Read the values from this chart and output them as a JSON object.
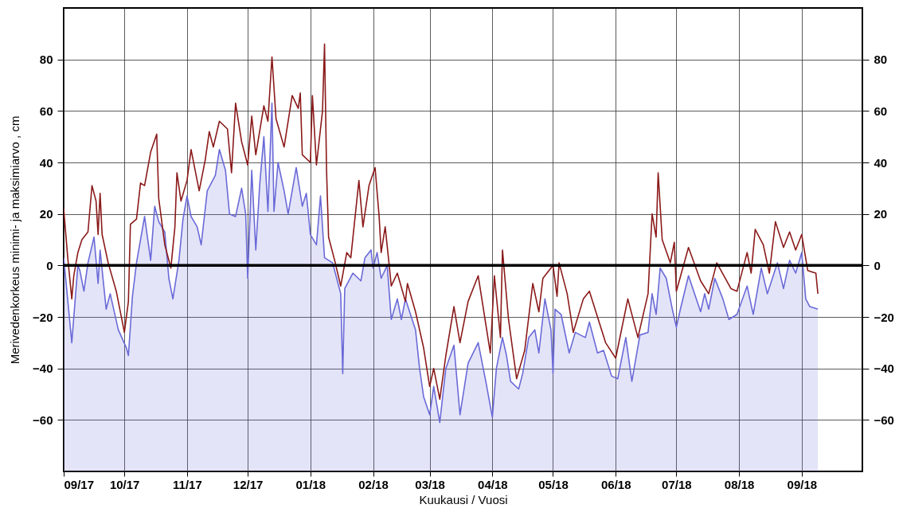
{
  "chart_data": {
    "type": "line",
    "xlabel": "Kuukausi / Vuosi",
    "ylabel": "Merivedenkorkeus minimi- ja maksimiarvo , cm",
    "xlim": [
      "2017-09-01",
      "2018-10-01"
    ],
    "xticks": [
      {
        "value": "2017-09-01",
        "label": "09/17"
      },
      {
        "value": "2017-10-01",
        "label": "10/17"
      },
      {
        "value": "2017-11-01",
        "label": "11/17"
      },
      {
        "value": "2017-12-01",
        "label": "12/17"
      },
      {
        "value": "2018-01-01",
        "label": "01/18"
      },
      {
        "value": "2018-02-01",
        "label": "02/18"
      },
      {
        "value": "2018-03-01",
        "label": "03/18"
      },
      {
        "value": "2018-04-01",
        "label": "04/18"
      },
      {
        "value": "2018-05-01",
        "label": "05/18"
      },
      {
        "value": "2018-06-01",
        "label": "06/18"
      },
      {
        "value": "2018-07-01",
        "label": "07/18"
      },
      {
        "value": "2018-08-01",
        "label": "08/18"
      },
      {
        "value": "2018-09-01",
        "label": "09/18"
      }
    ],
    "ylim": [
      -80,
      100
    ],
    "yticks": [
      -60,
      -40,
      -20,
      0,
      20,
      40,
      60,
      80
    ],
    "y2lim": [
      -80,
      100
    ],
    "y2ticks": [
      -60,
      -40,
      -20,
      0,
      20,
      40,
      60,
      80
    ],
    "grid": true,
    "ref_lines": [
      {
        "axis": "y",
        "value": 0,
        "color": "#000000"
      }
    ],
    "series": [
      {
        "type": "line",
        "color": "#6a6ad8",
        "lower": [
          -80,
          -80,
          -80,
          -80,
          -80,
          -80,
          -80,
          -80,
          -80,
          -80,
          -80,
          -80,
          -80,
          -80,
          -80,
          -80,
          -80,
          -80,
          -80,
          -80,
          -80,
          -80,
          -80,
          -80,
          -80,
          -80,
          -80,
          -80,
          -80,
          -80,
          -80,
          -80,
          -80,
          -80,
          -80,
          -80,
          -80,
          -80,
          -80,
          -80,
          -80,
          -80,
          -80,
          -80,
          -80,
          -80,
          -80,
          -80,
          -80,
          -80,
          -80,
          -80,
          -80,
          -80,
          -80,
          -80,
          -80,
          -80,
          -80,
          -80,
          -80,
          -80,
          -80,
          -80,
          -80,
          -80,
          -80,
          -80,
          -80,
          -80,
          -80,
          -80,
          -80,
          -80,
          -80,
          -80,
          -80,
          -80,
          -80,
          -80,
          -80,
          -80,
          -80,
          -80,
          -80,
          -80,
          -80,
          -80,
          -80,
          -80,
          -80,
          -80,
          -80,
          -80,
          -80,
          -80,
          -80,
          -80,
          -80,
          -80,
          -80,
          -80,
          -80,
          -80,
          -80,
          -80,
          -80,
          -80,
          -80,
          -80,
          -80,
          -80,
          -80,
          -80,
          -80,
          -80,
          -80,
          -80,
          -80,
          -80,
          -80,
          -80,
          -80,
          -80,
          -80,
          -80,
          -80,
          -80,
          -80,
          -80,
          -80,
          -80,
          -80,
          -80,
          -80,
          -80,
          -80,
          -80,
          -80
        ],
        "upper": [
          3,
          -30,
          0,
          -2,
          -10,
          1,
          11,
          -7,
          6,
          -17,
          -11,
          -25,
          -32,
          -35,
          -12,
          1,
          19,
          2,
          23,
          17,
          13,
          -5,
          -13,
          2,
          18,
          27,
          19,
          15,
          8,
          29,
          35,
          45,
          37,
          20,
          19,
          30,
          20,
          -5,
          37,
          6,
          32,
          50,
          21,
          63,
          21,
          40,
          29,
          20,
          38,
          23,
          28,
          12,
          8,
          27,
          3,
          1,
          -5,
          -11,
          -42,
          -9,
          -3,
          -6,
          3,
          6,
          -1,
          5,
          -5,
          0,
          -21,
          -13,
          -21,
          -13,
          -25,
          -40,
          -51,
          -58,
          -47,
          -61,
          -40,
          -31,
          -58,
          -38,
          -30,
          -46,
          -59,
          -40,
          -28,
          -35,
          -45,
          -48,
          -42,
          -28,
          -25,
          -34,
          -13,
          -25,
          -42,
          -17,
          -19,
          -34,
          -26,
          -28,
          -22,
          -34,
          -33,
          -43,
          -44,
          -28,
          -45,
          -36,
          -27,
          -26,
          -11,
          -19,
          -1,
          -5,
          -17,
          -24,
          -17,
          -4,
          -18,
          -11,
          -17,
          -5,
          -13,
          -21,
          -19,
          -8,
          -19,
          -1,
          -11,
          1,
          -9,
          2,
          -3,
          5,
          -13,
          -16,
          -17
        ],
        "x": [
          "2017-09-01",
          "2017-09-05",
          "2017-09-08",
          "2017-09-09",
          "2017-09-11",
          "2017-09-13",
          "2017-09-16",
          "2017-09-18",
          "2017-09-19",
          "2017-09-22",
          "2017-09-24",
          "2017-09-28",
          "2017-10-02",
          "2017-10-03",
          "2017-10-05",
          "2017-10-07",
          "2017-10-11",
          "2017-10-14",
          "2017-10-16",
          "2017-10-18",
          "2017-10-21",
          "2017-10-23",
          "2017-10-25",
          "2017-10-28",
          "2017-10-30",
          "2017-11-01",
          "2017-11-03",
          "2017-11-06",
          "2017-11-08",
          "2017-11-11",
          "2017-11-15",
          "2017-11-17",
          "2017-11-20",
          "2017-11-22",
          "2017-11-25",
          "2017-11-28",
          "2017-11-30",
          "2017-12-01",
          "2017-12-03",
          "2017-12-05",
          "2017-12-07",
          "2017-12-09",
          "2017-12-11",
          "2017-12-13",
          "2017-12-14",
          "2017-12-16",
          "2017-12-19",
          "2017-12-21",
          "2017-12-25",
          "2017-12-28",
          "2017-12-30",
          "2018-01-01",
          "2018-01-04",
          "2018-01-06",
          "2018-01-08",
          "2018-01-12",
          "2018-01-14",
          "2018-01-16",
          "2018-01-17",
          "2018-01-18",
          "2018-01-22",
          "2018-01-26",
          "2018-01-28",
          "2018-01-31",
          "2018-02-01",
          "2018-02-03",
          "2018-02-05",
          "2018-02-08",
          "2018-02-10",
          "2018-02-13",
          "2018-02-15",
          "2018-02-17",
          "2018-02-22",
          "2018-02-24",
          "2018-02-26",
          "2018-03-01",
          "2018-03-03",
          "2018-03-06",
          "2018-03-09",
          "2018-03-13",
          "2018-03-16",
          "2018-03-20",
          "2018-03-25",
          "2018-03-29",
          "2018-04-01",
          "2018-04-03",
          "2018-04-06",
          "2018-04-08",
          "2018-04-10",
          "2018-04-14",
          "2018-04-16",
          "2018-04-19",
          "2018-04-22",
          "2018-04-24",
          "2018-04-27",
          "2018-04-30",
          "2018-05-01",
          "2018-05-02",
          "2018-05-05",
          "2018-05-09",
          "2018-05-12",
          "2018-05-17",
          "2018-05-19",
          "2018-05-23",
          "2018-05-26",
          "2018-05-30",
          "2018-06-02",
          "2018-06-06",
          "2018-06-09",
          "2018-06-11",
          "2018-06-13",
          "2018-06-17",
          "2018-06-19",
          "2018-06-21",
          "2018-06-23",
          "2018-06-26",
          "2018-06-29",
          "2018-07-01",
          "2018-07-03",
          "2018-07-07",
          "2018-07-13",
          "2018-07-15",
          "2018-07-17",
          "2018-07-20",
          "2018-07-24",
          "2018-07-27",
          "2018-07-31",
          "2018-08-05",
          "2018-08-08",
          "2018-08-12",
          "2018-08-15",
          "2018-08-20",
          "2018-08-23",
          "2018-08-26",
          "2018-08-29",
          "2018-09-01",
          "2018-09-03",
          "2018-09-05",
          "2018-09-09"
        ],
        "values": [
          3,
          -30,
          0,
          -2,
          -10,
          1,
          11,
          -7,
          6,
          -17,
          -11,
          -25,
          -32,
          -35,
          -12,
          1,
          19,
          2,
          23,
          17,
          13,
          -5,
          -13,
          2,
          18,
          27,
          19,
          15,
          8,
          29,
          35,
          45,
          37,
          20,
          19,
          30,
          20,
          -5,
          37,
          6,
          32,
          50,
          21,
          63,
          21,
          40,
          29,
          20,
          38,
          23,
          28,
          12,
          8,
          27,
          3,
          1,
          -5,
          -11,
          -42,
          -9,
          -3,
          -6,
          3,
          6,
          -1,
          5,
          -5,
          0,
          -21,
          -13,
          -21,
          -13,
          -25,
          -40,
          -51,
          -58,
          -47,
          -61,
          -40,
          -31,
          -58,
          -38,
          -30,
          -46,
          -59,
          -40,
          -28,
          -35,
          -45,
          -48,
          -42,
          -28,
          -25,
          -34,
          -13,
          -25,
          -42,
          -17,
          -19,
          -34,
          -26,
          -28,
          -22,
          -34,
          -33,
          -43,
          -44,
          -28,
          -45,
          -36,
          -27,
          -26,
          -11,
          -19,
          -1,
          -5,
          -17,
          -24,
          -17,
          -4,
          -18,
          -11,
          -17,
          -5,
          -13,
          -21,
          -19,
          -8,
          -19,
          -1,
          -11,
          1,
          -9,
          2,
          -3,
          5,
          -13,
          -16,
          -17
        ]
      },
      {
        "type": "line",
        "color": "#8b1a1a",
        "x": [
          "2017-09-01",
          "2017-09-03",
          "2017-09-05",
          "2017-09-06",
          "2017-09-08",
          "2017-09-10",
          "2017-09-13",
          "2017-09-15",
          "2017-09-17",
          "2017-09-18",
          "2017-09-19",
          "2017-09-20",
          "2017-09-23",
          "2017-09-27",
          "2017-10-01",
          "2017-10-03",
          "2017-10-04",
          "2017-10-07",
          "2017-10-09",
          "2017-10-11",
          "2017-10-14",
          "2017-10-17",
          "2017-10-18",
          "2017-10-21",
          "2017-10-24",
          "2017-10-26",
          "2017-10-27",
          "2017-10-29",
          "2017-11-01",
          "2017-11-03",
          "2017-11-07",
          "2017-11-10",
          "2017-11-12",
          "2017-11-14",
          "2017-11-17",
          "2017-11-21",
          "2017-11-23",
          "2017-11-25",
          "2017-11-28",
          "2017-12-01",
          "2017-12-03",
          "2017-12-05",
          "2017-12-09",
          "2017-12-11",
          "2017-12-13",
          "2017-12-15",
          "2017-12-19",
          "2017-12-23",
          "2017-12-26",
          "2017-12-27",
          "2017-12-28",
          "2018-01-01",
          "2018-01-02",
          "2018-01-04",
          "2018-01-07",
          "2018-01-08",
          "2018-01-09",
          "2018-01-10",
          "2018-01-13",
          "2018-01-16",
          "2018-01-19",
          "2018-01-21",
          "2018-01-25",
          "2018-01-27",
          "2018-01-30",
          "2018-02-02",
          "2018-02-04",
          "2018-02-05",
          "2018-02-07",
          "2018-02-09",
          "2018-02-10",
          "2018-02-13",
          "2018-02-17",
          "2018-02-18",
          "2018-02-22",
          "2018-02-26",
          "2018-03-01",
          "2018-03-03",
          "2018-03-06",
          "2018-03-09",
          "2018-03-13",
          "2018-03-16",
          "2018-03-20",
          "2018-03-25",
          "2018-03-31",
          "2018-04-02",
          "2018-04-05",
          "2018-04-06",
          "2018-04-09",
          "2018-04-13",
          "2018-04-17",
          "2018-04-21",
          "2018-04-24",
          "2018-04-26",
          "2018-05-01",
          "2018-05-03",
          "2018-05-04",
          "2018-05-08",
          "2018-05-11",
          "2018-05-16",
          "2018-05-19",
          "2018-05-23",
          "2018-05-27",
          "2018-06-01",
          "2018-06-07",
          "2018-06-12",
          "2018-06-17",
          "2018-06-19",
          "2018-06-21",
          "2018-06-22",
          "2018-06-24",
          "2018-06-28",
          "2018-06-30",
          "2018-07-01",
          "2018-07-07",
          "2018-07-13",
          "2018-07-17",
          "2018-07-21",
          "2018-07-28",
          "2018-07-31",
          "2018-08-05",
          "2018-08-07",
          "2018-08-09",
          "2018-08-13",
          "2018-08-16",
          "2018-08-19",
          "2018-08-23",
          "2018-08-26",
          "2018-08-29",
          "2018-09-01",
          "2018-09-04",
          "2018-09-08",
          "2018-09-09"
        ],
        "values": [
          22,
          3,
          -13,
          -4,
          5,
          10,
          13,
          31,
          25,
          12,
          28,
          12,
          1,
          -10,
          -26,
          -14,
          16,
          18,
          32,
          31,
          44,
          51,
          26,
          8,
          -1,
          15,
          36,
          25,
          33,
          45,
          29,
          41,
          52,
          46,
          56,
          53,
          36,
          63,
          48,
          39,
          58,
          43,
          62,
          56,
          81,
          57,
          46,
          66,
          61,
          67,
          43,
          40,
          66,
          39,
          60,
          86,
          37,
          11,
          2,
          -8,
          5,
          3,
          33,
          15,
          31,
          38,
          19,
          5,
          15,
          0,
          -8,
          -3,
          -14,
          -7,
          -18,
          -32,
          -47,
          -40,
          -52,
          -35,
          -16,
          -30,
          -14,
          -4,
          -34,
          -4,
          -28,
          6,
          -21,
          -44,
          -33,
          -7,
          -18,
          -5,
          0,
          -12,
          1,
          -11,
          -26,
          -13,
          -10,
          -20,
          -30,
          -36,
          -13,
          -28,
          -11,
          20,
          11,
          36,
          10,
          1,
          9,
          -10,
          7,
          -6,
          -11,
          1,
          -9,
          -10,
          5,
          -3,
          14,
          8,
          -3,
          17,
          7,
          13,
          6,
          12,
          -2,
          -3,
          -11
        ]
      }
    ]
  }
}
